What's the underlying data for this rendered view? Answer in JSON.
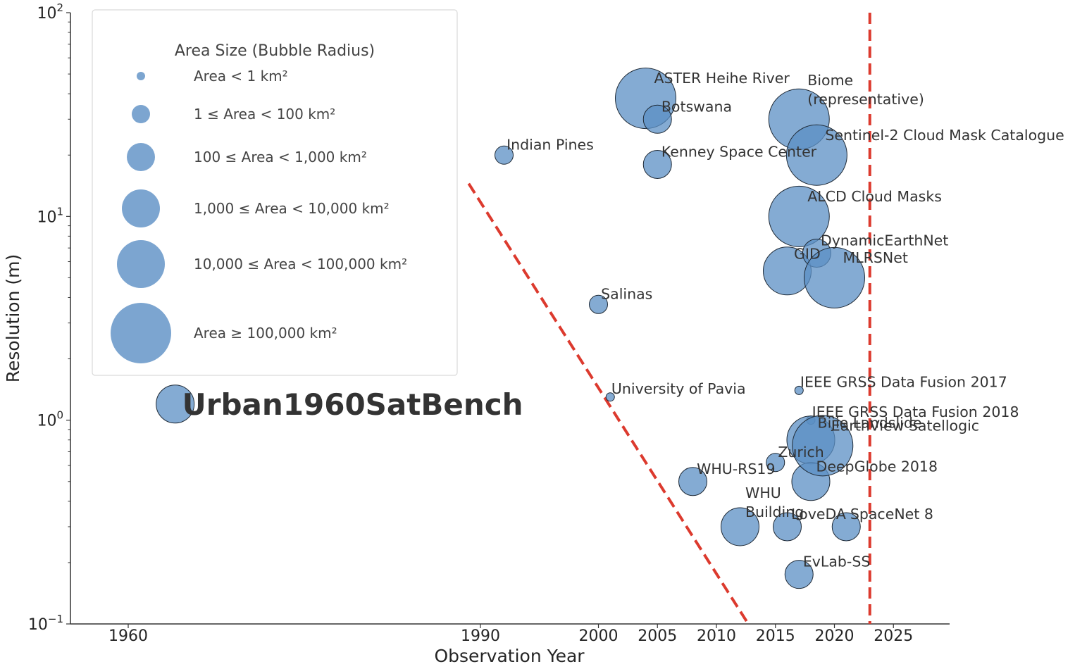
{
  "chart_data": {
    "type": "scatter",
    "title": "",
    "xlabel": "Observation Year",
    "ylabel": "Resolution (m)",
    "yscale": "log",
    "xscale": "broken (compressed before 1990)",
    "xlim": [
      1952,
      2030
    ],
    "ylim": [
      0.1,
      100
    ],
    "x_ticks": [
      "1960",
      "1990",
      "2000",
      "2005",
      "2010",
      "2015",
      "2020",
      "2025"
    ],
    "y_ticks": [
      {
        "base": "10",
        "exp": "2",
        "value": 100
      },
      {
        "base": "10",
        "exp": "1",
        "value": 10
      },
      {
        "base": "10",
        "exp": "0",
        "value": 1
      },
      {
        "base": "10",
        "exp": "−1",
        "value": 0.1
      }
    ],
    "bubble_color": "#5b8fc4",
    "reference_line_color": "#dc3a2e",
    "reference_lines": [
      {
        "type": "diagonal",
        "from": {
          "x": 1989,
          "y": 14.5
        },
        "to": {
          "x": 2012.7,
          "y": 0.1
        }
      },
      {
        "type": "vertical",
        "x": 2023
      }
    ],
    "highlight": {
      "name": "Urban1960SatBench",
      "x": 1964,
      "y": 1.2,
      "size_class": 4
    },
    "points": [
      {
        "name": "Indian Pines",
        "x": 1992,
        "y": 20,
        "size_class": 2
      },
      {
        "name": "Salinas",
        "x": 2000,
        "y": 3.7,
        "size_class": 2
      },
      {
        "name": "University of Pavia",
        "x": 2001,
        "y": 1.3,
        "size_class": 1
      },
      {
        "name": "ASTER Heihe River",
        "x": 2004,
        "y": 38,
        "size_class": 6
      },
      {
        "name": "Botswana",
        "x": 2005,
        "y": 30,
        "size_class": 3
      },
      {
        "name": "Kenney Space Center",
        "x": 2005,
        "y": 18,
        "size_class": 3
      },
      {
        "name": "WHU-RS19",
        "x": 2008,
        "y": 0.5,
        "size_class": 3
      },
      {
        "name": "WHU Building",
        "x": 2012,
        "y": 0.3,
        "size_class": 4
      },
      {
        "name": "Zurich",
        "x": 2015,
        "y": 0.62,
        "size_class": 2
      },
      {
        "name": "LoveDA",
        "x": 2016,
        "y": 0.3,
        "size_class": 3
      },
      {
        "name": "GID",
        "x": 2016,
        "y": 5.4,
        "size_class": 5
      },
      {
        "name": "Biome (representative)",
        "x": 2017,
        "y": 30,
        "size_class": 6
      },
      {
        "name": "ALCD Cloud Masks",
        "x": 2017,
        "y": 10,
        "size_class": 6
      },
      {
        "name": "IEEE GRSS Data Fusion 2017",
        "x": 2017,
        "y": 1.4,
        "size_class": 1
      },
      {
        "name": "EvLab-SS",
        "x": 2017,
        "y": 0.175,
        "size_class": 3
      },
      {
        "name": "IEEE GRSS Data Fusion 2018",
        "x": 2018,
        "y": 1.0,
        "size_class": 1
      },
      {
        "name": "Bijie Landslide",
        "x": 2018,
        "y": 0.8,
        "size_class": 5
      },
      {
        "name": "DeepGlobe 2018",
        "x": 2018,
        "y": 0.5,
        "size_class": 4
      },
      {
        "name": "Sentinel-2 Cloud Mask Catalogue",
        "x": 2018.5,
        "y": 20,
        "size_class": 6
      },
      {
        "name": "DynamicEarthNet",
        "x": 2018.5,
        "y": 6.6,
        "size_class": 3
      },
      {
        "name": "EarthView Satellogic",
        "x": 2019,
        "y": 0.75,
        "size_class": 6
      },
      {
        "name": "MLRSNet",
        "x": 2020,
        "y": 5,
        "size_class": 6
      },
      {
        "name": "SpaceNet 8",
        "x": 2021,
        "y": 0.3,
        "size_class": 3
      }
    ],
    "legend": {
      "title": "Area Size (Bubble Radius)",
      "placement": "upper-left",
      "entries": [
        {
          "label": "Area < 1 km²",
          "size_class": 1
        },
        {
          "label": "1 ≤ Area < 100 km²",
          "size_class": 2
        },
        {
          "label": "100 ≤ Area < 1,000 km²",
          "size_class": 3
        },
        {
          "label": "1,000 ≤ Area < 10,000 km²",
          "size_class": 4
        },
        {
          "label": "10,000 ≤ Area < 100,000 km²",
          "size_class": 5
        },
        {
          "label": "Area ≥ 100,000 km²",
          "size_class": 6
        }
      ]
    }
  }
}
